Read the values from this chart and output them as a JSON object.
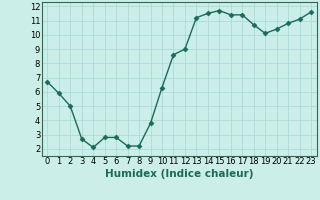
{
  "x": [
    0,
    1,
    2,
    3,
    4,
    5,
    6,
    7,
    8,
    9,
    10,
    11,
    12,
    13,
    14,
    15,
    16,
    17,
    18,
    19,
    20,
    21,
    22,
    23
  ],
  "y": [
    6.7,
    5.9,
    5.0,
    2.7,
    2.1,
    2.8,
    2.8,
    2.2,
    2.2,
    3.8,
    6.3,
    8.6,
    9.0,
    11.2,
    11.5,
    11.7,
    11.4,
    11.4,
    10.7,
    10.1,
    10.4,
    10.8,
    11.1,
    11.6
  ],
  "line_color": "#1a6b5a",
  "marker": "D",
  "marker_size": 2.5,
  "background_color": "#cceee8",
  "grid_color": "#aaddda",
  "xlabel": "Humidex (Indice chaleur)",
  "xlabel_fontsize": 7.5,
  "xlim": [
    -0.5,
    23.5
  ],
  "ylim": [
    1.5,
    12.3
  ],
  "yticks": [
    2,
    3,
    4,
    5,
    6,
    7,
    8,
    9,
    10,
    11,
    12
  ],
  "xticks": [
    0,
    1,
    2,
    3,
    4,
    5,
    6,
    7,
    8,
    9,
    10,
    11,
    12,
    13,
    14,
    15,
    16,
    17,
    18,
    19,
    20,
    21,
    22,
    23
  ],
  "tick_fontsize": 6,
  "line_width": 1.0,
  "axis_color": "#336655",
  "spine_color": "#336655"
}
